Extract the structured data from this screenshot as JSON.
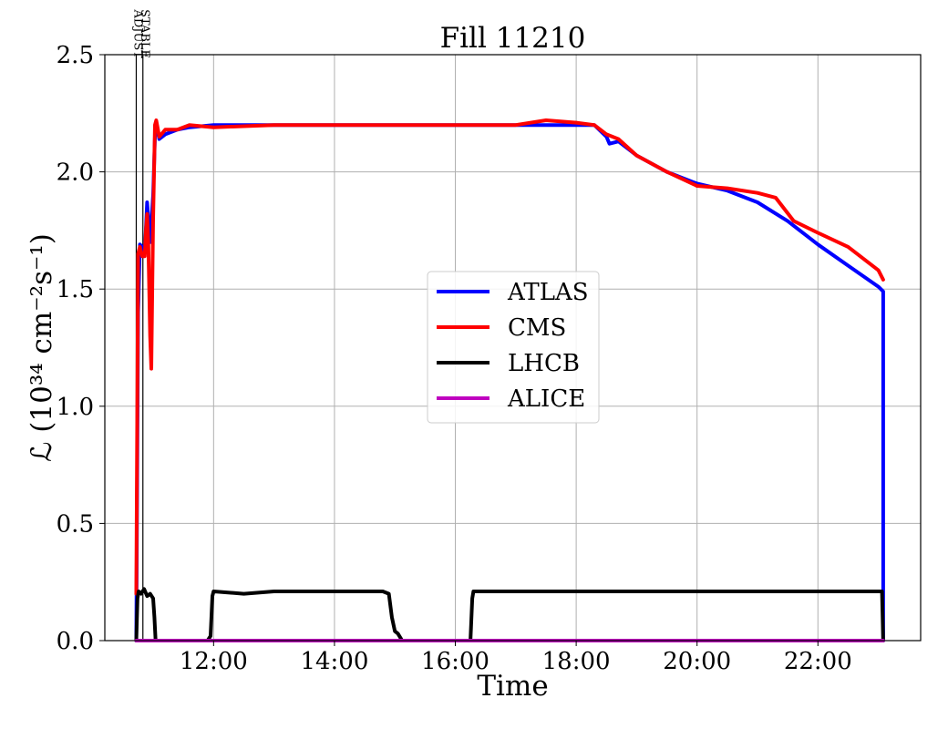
{
  "chart_data": {
    "type": "line",
    "title": "Fill 11210",
    "xlabel": "Time",
    "ylabel": "ℒ (10³⁴ cm⁻²s⁻¹)",
    "x_unit": "hours of day",
    "xlim": [
      10.2,
      23.7
    ],
    "ylim": [
      0.0,
      2.5
    ],
    "x_ticks": [
      12,
      14,
      16,
      18,
      20,
      22
    ],
    "x_tick_labels": [
      "12:00",
      "14:00",
      "16:00",
      "18:00",
      "20:00",
      "22:00"
    ],
    "y_ticks": [
      0.0,
      0.5,
      1.0,
      1.5,
      2.0,
      2.5
    ],
    "y_tick_labels": [
      "0.0",
      "0.5",
      "1.0",
      "1.5",
      "2.0",
      "2.5"
    ],
    "grid": true,
    "legend_position": "center-right",
    "markers": [
      {
        "label": "ADJUST",
        "x": 10.72
      },
      {
        "label": "STABLE",
        "x": 10.83
      }
    ],
    "series": [
      {
        "name": "ATLAS",
        "color": "#0000ff",
        "x": [
          10.72,
          10.75,
          10.78,
          10.82,
          10.86,
          10.9,
          10.95,
          11.0,
          11.03,
          11.06,
          11.1,
          11.2,
          11.4,
          11.6,
          12.0,
          13.0,
          14.0,
          15.0,
          16.0,
          17.0,
          17.5,
          18.0,
          18.3,
          18.5,
          18.55,
          18.7,
          19.0,
          19.5,
          20.0,
          20.5,
          21.0,
          21.5,
          22.0,
          22.5,
          23.0,
          23.08,
          23.08
        ],
        "y": [
          0.0,
          1.4,
          1.69,
          1.68,
          1.65,
          1.87,
          1.7,
          1.9,
          2.15,
          2.2,
          2.14,
          2.16,
          2.18,
          2.19,
          2.2,
          2.2,
          2.2,
          2.2,
          2.2,
          2.2,
          2.2,
          2.2,
          2.2,
          2.15,
          2.12,
          2.13,
          2.07,
          2.0,
          1.95,
          1.92,
          1.87,
          1.79,
          1.69,
          1.6,
          1.51,
          1.49,
          0.0
        ]
      },
      {
        "name": "CMS",
        "color": "#ff0000",
        "x": [
          10.72,
          10.75,
          10.78,
          10.82,
          10.86,
          10.88,
          10.9,
          10.92,
          10.95,
          10.97,
          11.0,
          11.03,
          11.05,
          11.08,
          11.1,
          11.2,
          11.4,
          11.6,
          12.0,
          13.0,
          14.0,
          15.0,
          16.0,
          17.0,
          17.5,
          18.0,
          18.3,
          18.5,
          18.7,
          19.0,
          19.5,
          20.0,
          20.5,
          21.0,
          21.3,
          21.6,
          22.0,
          22.5,
          23.0,
          23.08
        ],
        "y": [
          0.2,
          1.65,
          1.68,
          1.64,
          1.64,
          1.75,
          1.82,
          1.7,
          1.3,
          1.16,
          1.8,
          2.2,
          2.22,
          2.18,
          2.15,
          2.18,
          2.18,
          2.2,
          2.19,
          2.2,
          2.2,
          2.2,
          2.2,
          2.2,
          2.22,
          2.21,
          2.2,
          2.16,
          2.14,
          2.07,
          2.0,
          1.94,
          1.93,
          1.91,
          1.89,
          1.79,
          1.74,
          1.68,
          1.58,
          1.54
        ]
      },
      {
        "name": "LHCB",
        "color": "#000000",
        "x": [
          10.72,
          10.74,
          10.76,
          10.8,
          10.85,
          10.9,
          10.95,
          11.0,
          11.02,
          11.04,
          11.06,
          11.9,
          11.95,
          11.98,
          12.0,
          12.5,
          13.0,
          14.0,
          14.8,
          14.9,
          14.95,
          15.0,
          15.05,
          15.12,
          16.25,
          16.28,
          16.3,
          17.0,
          18.0,
          19.0,
          20.0,
          21.0,
          22.0,
          23.0,
          23.06,
          23.08
        ],
        "y": [
          0.0,
          0.18,
          0.21,
          0.2,
          0.22,
          0.19,
          0.2,
          0.18,
          0.1,
          0.0,
          0.0,
          0.0,
          0.02,
          0.19,
          0.21,
          0.2,
          0.21,
          0.21,
          0.21,
          0.2,
          0.1,
          0.04,
          0.03,
          0.0,
          0.0,
          0.18,
          0.21,
          0.21,
          0.21,
          0.21,
          0.21,
          0.21,
          0.21,
          0.21,
          0.21,
          0.0
        ]
      },
      {
        "name": "ALICE",
        "color": "#bf00bf",
        "x": [
          10.72,
          23.08
        ],
        "y": [
          0.0,
          0.0
        ]
      }
    ]
  }
}
